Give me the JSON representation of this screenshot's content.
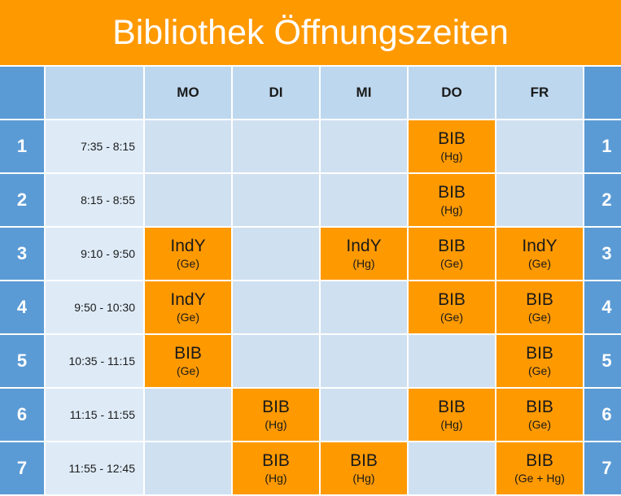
{
  "title": "Bibliothek Öffnungszeiten",
  "colors": {
    "header": "#ff9900",
    "periodCell": "#5b9bd5",
    "occupied": "#ff9900",
    "free": "#cfe0f1"
  },
  "days": [
    "MO",
    "DI",
    "MI",
    "DO",
    "FR"
  ],
  "rows": [
    {
      "period": "1",
      "time": "7:35 - 8:15",
      "cells": [
        null,
        null,
        null,
        {
          "label": "BIB",
          "who": "(Hg)"
        },
        null
      ]
    },
    {
      "period": "2",
      "time": "8:15 - 8:55",
      "cells": [
        null,
        null,
        null,
        {
          "label": "BIB",
          "who": "(Hg)"
        },
        null
      ]
    },
    {
      "period": "3",
      "time": "9:10 - 9:50",
      "cells": [
        {
          "label": "IndY",
          "who": "(Ge)"
        },
        null,
        {
          "label": "IndY",
          "who": "(Hg)"
        },
        {
          "label": "BIB",
          "who": "(Ge)"
        },
        {
          "label": "IndY",
          "who": "(Ge)"
        }
      ]
    },
    {
      "period": "4",
      "time": "9:50 - 10:30",
      "cells": [
        {
          "label": "IndY",
          "who": "(Ge)"
        },
        null,
        null,
        {
          "label": "BIB",
          "who": "(Ge)"
        },
        {
          "label": "BIB",
          "who": "(Ge)"
        }
      ]
    },
    {
      "period": "5",
      "time": "10:35 - 11:15",
      "cells": [
        {
          "label": "BIB",
          "who": "(Ge)"
        },
        null,
        null,
        null,
        {
          "label": "BIB",
          "who": "(Ge)"
        }
      ]
    },
    {
      "period": "6",
      "time": "11:15 - 11:55",
      "cells": [
        null,
        {
          "label": "BIB",
          "who": "(Hg)"
        },
        null,
        {
          "label": "BIB",
          "who": "(Hg)"
        },
        {
          "label": "BIB",
          "who": "(Ge)"
        }
      ]
    },
    {
      "period": "7",
      "time": "11:55 - 12:45",
      "cells": [
        null,
        {
          "label": "BIB",
          "who": "(Hg)"
        },
        {
          "label": "BIB",
          "who": "(Hg)"
        },
        null,
        {
          "label": "BIB",
          "who": "(Ge + Hg)"
        }
      ]
    }
  ]
}
